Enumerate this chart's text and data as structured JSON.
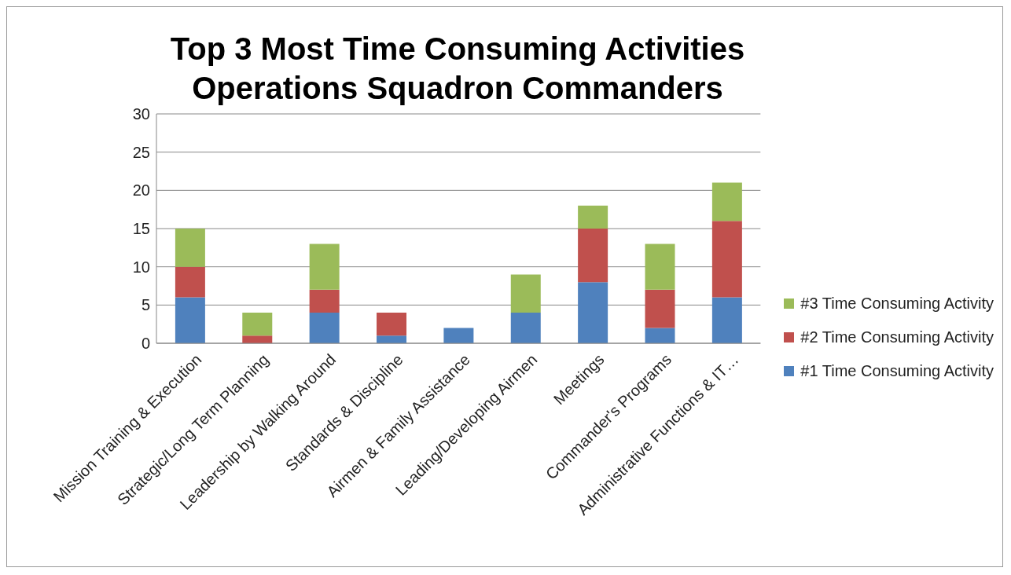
{
  "chart_data": {
    "type": "bar",
    "title": "Top 3 Most Time Consuming Activities Operations Squadron Commanders",
    "categories": [
      "Mission Training & Execution",
      "Strategic/Long Term Planning",
      "Leadership by Walking Around",
      "Standards & Discipline",
      "Airmen & Family Assistance",
      "Leading/Developing Airmen",
      "Meetings",
      "Commander's Programs",
      "Administrative Functions & IT…"
    ],
    "series": [
      {
        "name": "#1 Time Consuming Activity",
        "color": "#4f81bd",
        "values": [
          6,
          0,
          4,
          1,
          2,
          4,
          8,
          2,
          6
        ]
      },
      {
        "name": "#2 Time Consuming Activity",
        "color": "#c0504d",
        "values": [
          4,
          1,
          3,
          3,
          0,
          0,
          7,
          5,
          10
        ]
      },
      {
        "name": "#3 Time Consuming Activity",
        "color": "#9bbb59",
        "values": [
          5,
          3,
          6,
          0,
          0,
          5,
          3,
          6,
          5
        ]
      }
    ],
    "stacked": true,
    "ylim": [
      0,
      30
    ],
    "yticks": [
      0,
      5,
      10,
      15,
      20,
      25,
      30
    ],
    "grid": "y",
    "legend": "right"
  }
}
